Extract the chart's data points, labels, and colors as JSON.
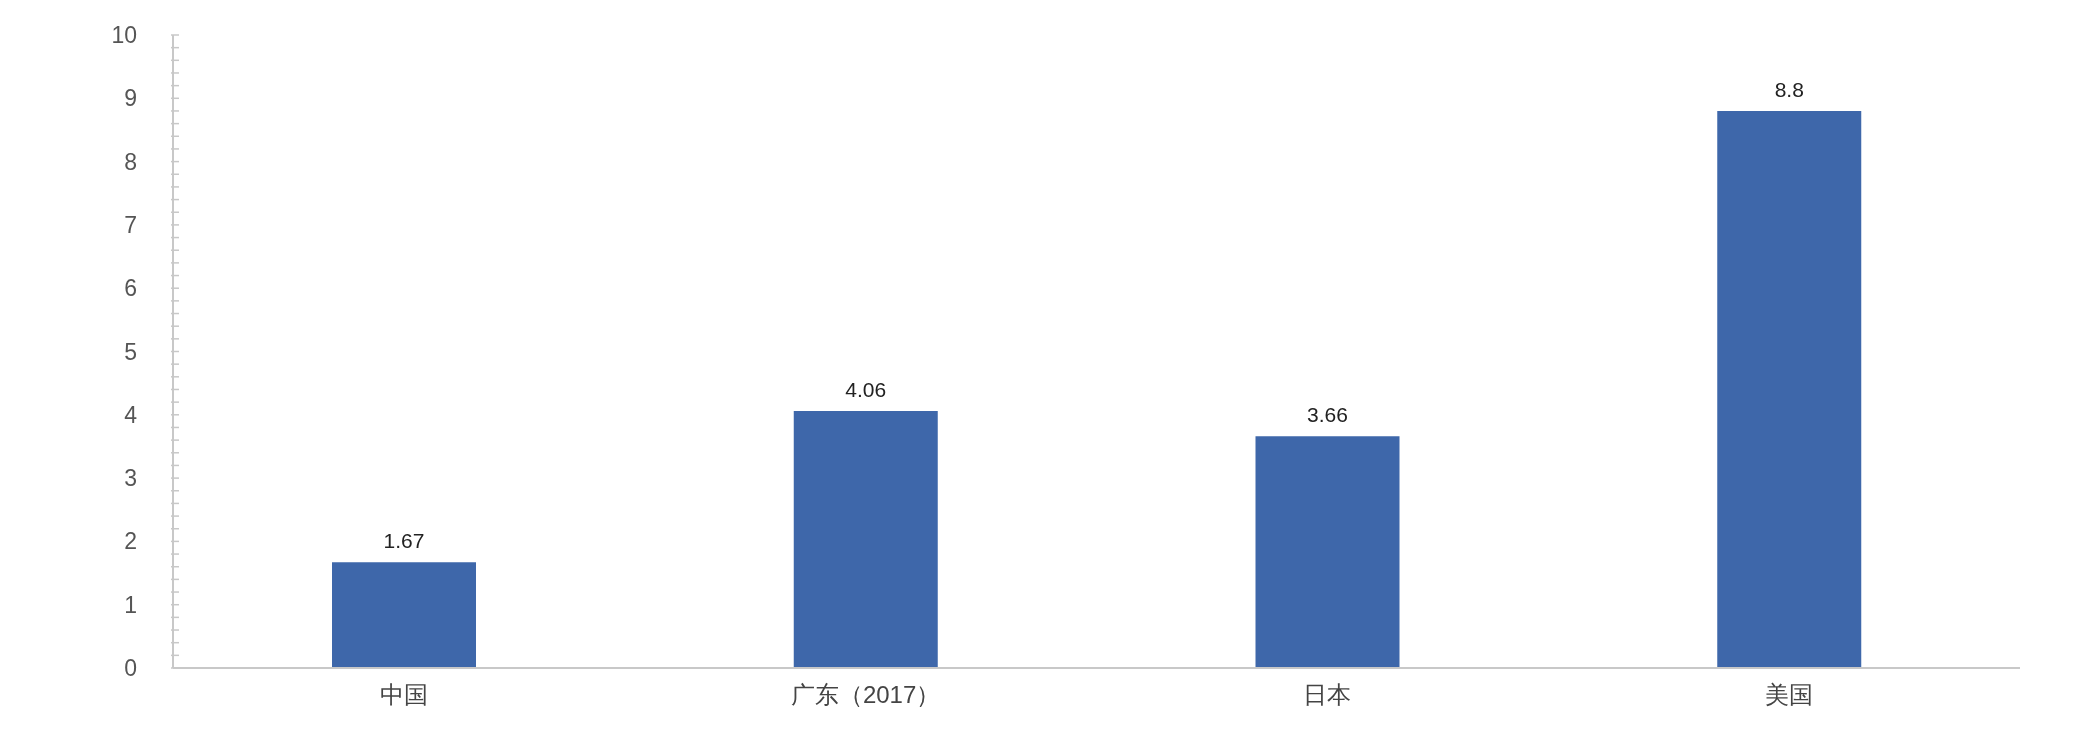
{
  "chart_data": {
    "type": "bar",
    "categories": [
      "中国",
      "广东（2017）",
      "日本",
      "美国"
    ],
    "values": [
      1.67,
      4.06,
      3.66,
      8.8
    ],
    "color": "#3e67aa",
    "data_labels": true,
    "grid": false,
    "legend": false,
    "ylim": [
      0,
      10
    ],
    "yticks": [
      0,
      {
        "value": 0.2,
        "label": null
      },
      {
        "value": 0.4,
        "label": null
      },
      {
        "value": 0.6,
        "label": null
      },
      {
        "value": 0.8,
        "label": null
      },
      1,
      {
        "value": 1.2,
        "label": null
      },
      {
        "value": 1.4,
        "label": null
      },
      {
        "value": 1.6,
        "label": null
      },
      {
        "value": 1.8,
        "label": null
      },
      2,
      {
        "value": 2.2,
        "label": null
      },
      {
        "value": 2.4,
        "label": null
      },
      {
        "value": 2.6,
        "label": null
      },
      {
        "value": 2.8,
        "label": null
      },
      3,
      {
        "value": 3.2,
        "label": null
      },
      {
        "value": 3.4,
        "label": null
      },
      {
        "value": 3.6,
        "label": null
      },
      {
        "value": 3.8,
        "label": null
      },
      4,
      {
        "value": 4.2,
        "label": null
      },
      {
        "value": 4.4,
        "label": null
      },
      {
        "value": 4.6,
        "label": null
      },
      {
        "value": 4.8,
        "label": null
      },
      5,
      {
        "value": 5.2,
        "label": null
      },
      {
        "value": 5.4,
        "label": null
      },
      {
        "value": 5.6,
        "label": null
      },
      {
        "value": 5.8,
        "label": null
      },
      6,
      {
        "value": 6.2,
        "label": null
      },
      {
        "value": 6.4,
        "label": null
      },
      {
        "value": 6.6,
        "label": null
      },
      {
        "value": 6.8,
        "label": null
      },
      7,
      {
        "value": 7.2,
        "label": null
      },
      {
        "value": 7.4,
        "label": null
      },
      {
        "value": 7.6,
        "label": null
      },
      {
        "value": 7.8,
        "label": null
      },
      8,
      {
        "value": 8.2,
        "label": null
      },
      {
        "value": 8.4,
        "label": null
      },
      {
        "value": 8.6,
        "label": null
      },
      {
        "value": 8.8,
        "label": null
      },
      9,
      {
        "value": 9.2,
        "label": null
      },
      {
        "value": 9.4,
        "label": null
      },
      {
        "value": 9.6,
        "label": null
      },
      {
        "value": 9.8,
        "label": null
      },
      10
    ]
  }
}
